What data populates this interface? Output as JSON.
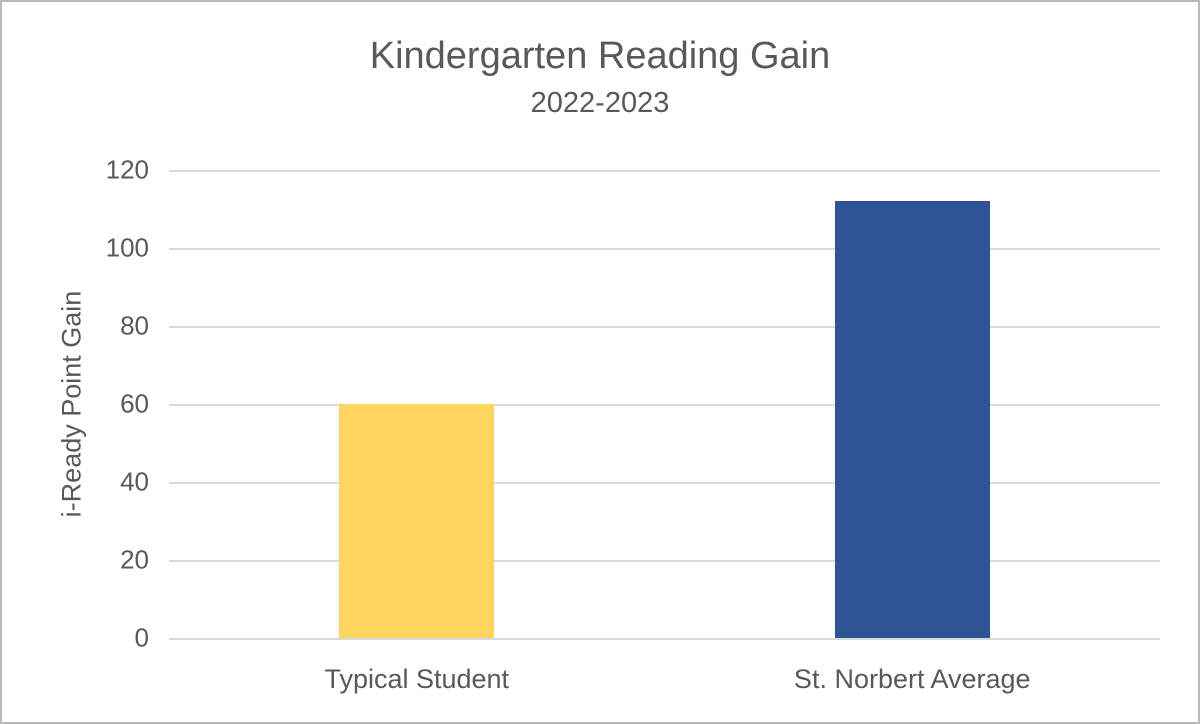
{
  "chart": {
    "title": "Kindergarten Reading Gain",
    "subtitle": "2022-2023",
    "ylabel": "i-Ready Point Gain"
  },
  "chart_data": {
    "type": "bar",
    "title": "Kindergarten Reading Gain",
    "subtitle": "2022-2023",
    "xlabel": "",
    "ylabel": "i-Ready Point Gain",
    "categories": [
      "Typical Student",
      "St. Norbert Average"
    ],
    "values": [
      60,
      112
    ],
    "bar_colors": [
      "#FFD55F",
      "#2F5496"
    ],
    "ylim": [
      0,
      120
    ],
    "ytick_step": 20,
    "yticks": [
      0,
      20,
      40,
      60,
      80,
      100,
      120
    ],
    "grid": "horizontal-only",
    "legend": "none",
    "gridline_color": "#D9D9D9",
    "text_color": "#595959",
    "background_color": "#FFFFFF",
    "border_color": "#B9B9B9"
  }
}
